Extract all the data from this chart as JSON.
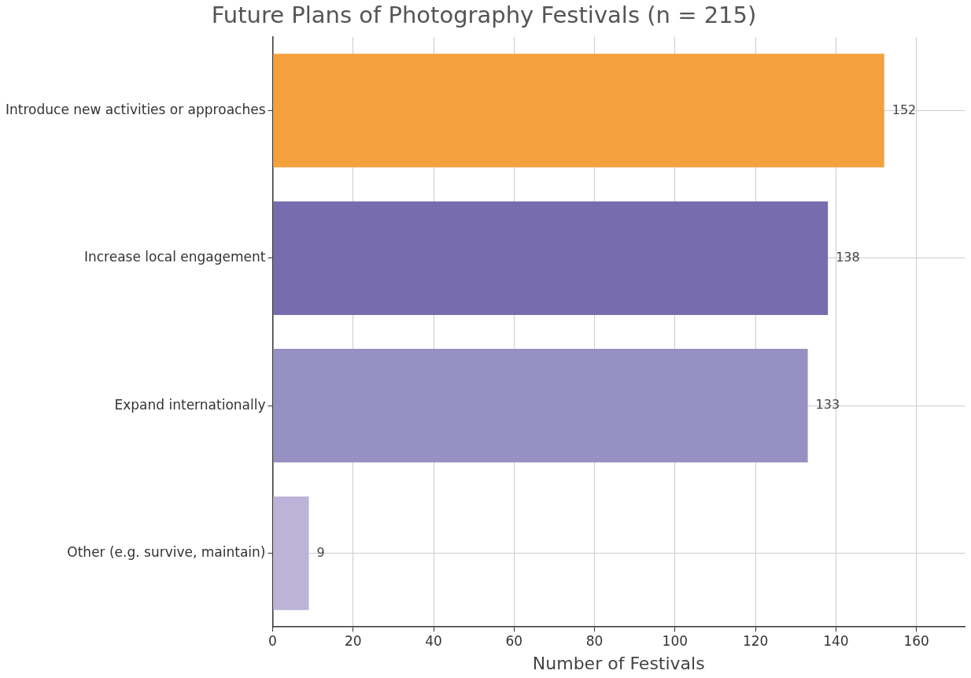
{
  "chart_data": {
    "type": "bar",
    "orientation": "horizontal",
    "title": "Future Plans of Photography Festivals (n = 215)",
    "xlabel": "Number of Festivals",
    "categories": [
      "Introduce new activities or approaches",
      "Increase local engagement",
      "Expand internationally",
      "Other (e.g. survive, maintain)"
    ],
    "values": [
      152,
      138,
      133,
      9
    ],
    "colors": [
      "#f4a03c",
      "#776cae",
      "#9790c3",
      "#bcb3d9"
    ],
    "xlim": [
      0,
      172
    ],
    "xticks": [
      0,
      20,
      40,
      60,
      80,
      100,
      120,
      140,
      160
    ],
    "grid": true,
    "data_labels": true,
    "legend": false
  }
}
